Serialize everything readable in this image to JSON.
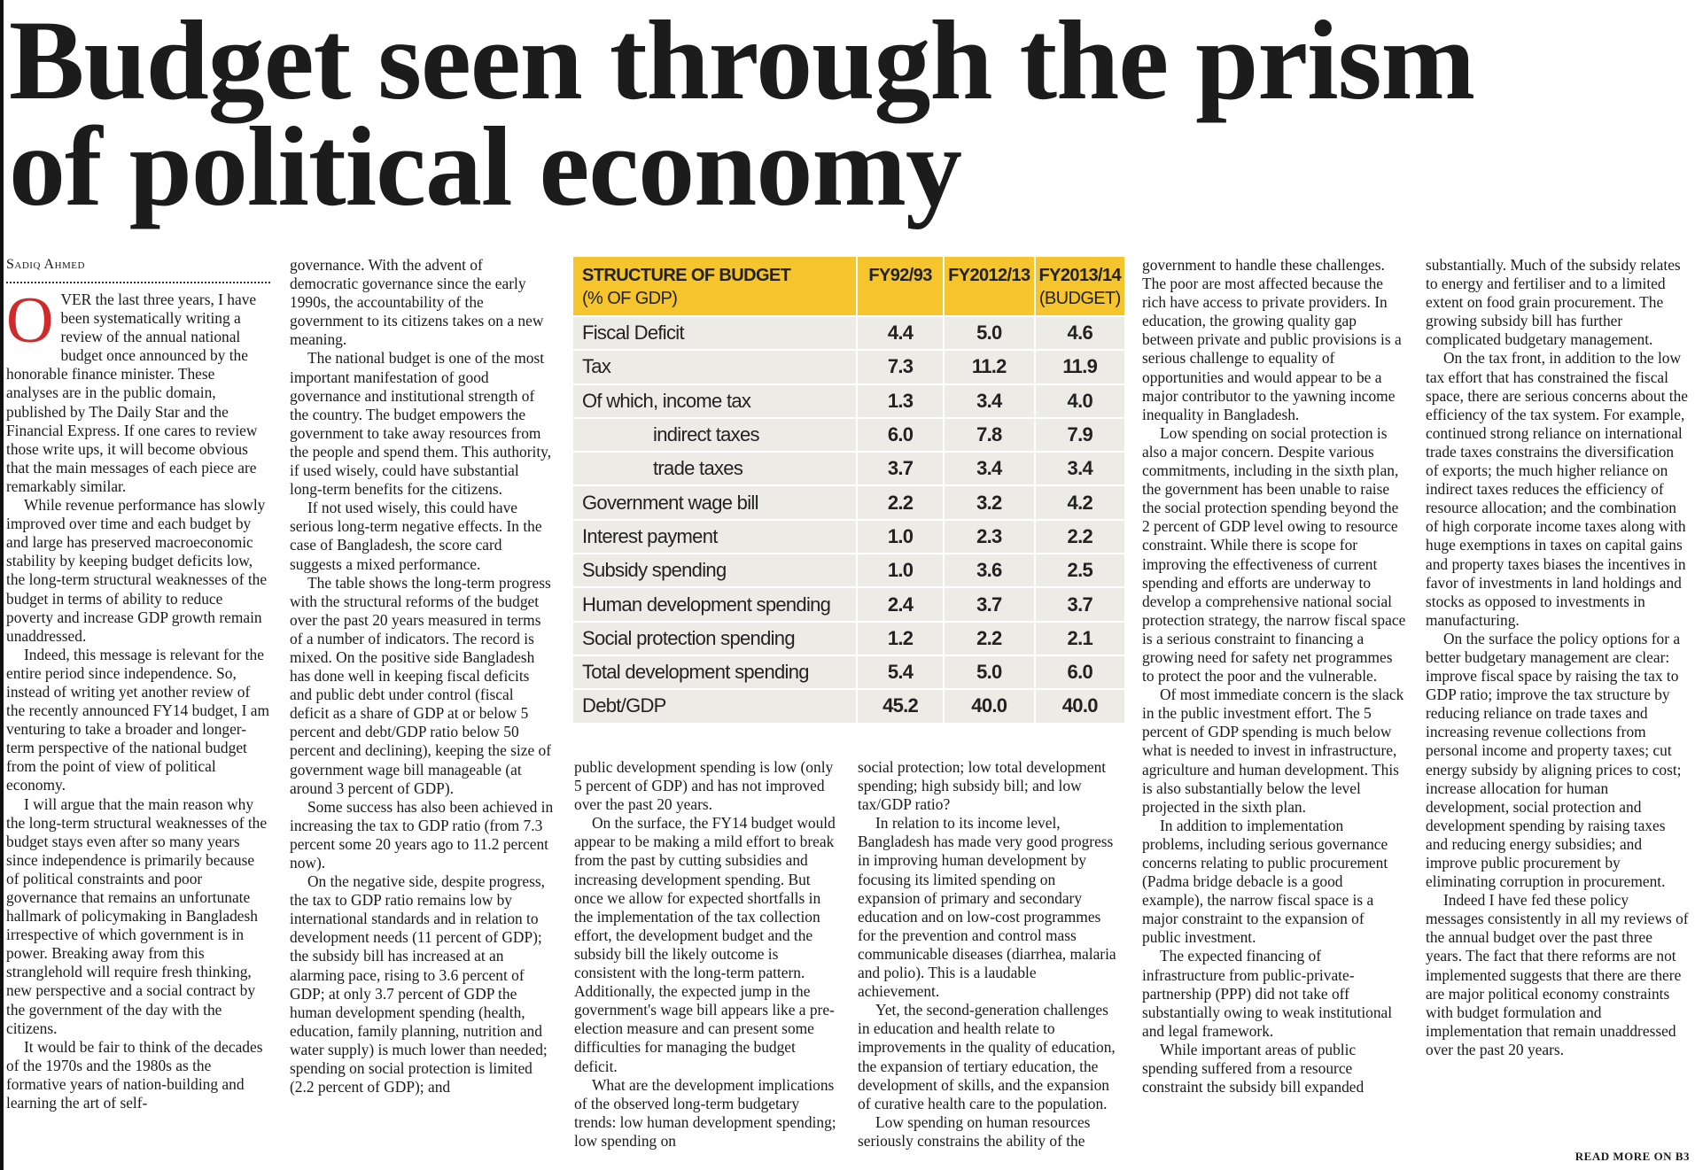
{
  "headline_lines": [
    "Budget seen through the prism",
    "of political economy"
  ],
  "byline": "Sadiq Ahmed",
  "columns": [
    {
      "paragraphs": [
        "OVER the last three years, I have been systematically writing a review of the annual national budget once announced by the honorable finance minister.  These analyses are in the public domain, published by The Daily Star and the Financial Express. If one cares to review those write ups, it will become obvious that the main messages of each piece are remarkably similar.",
        "While revenue performance has slowly improved over time and each budget by and large has preserved macroeconomic stability by keeping budget deficits low, the long-term structural weaknesses of the budget in terms of ability to reduce poverty and increase GDP growth remain unaddressed.",
        "Indeed, this message is relevant for the entire period since independence. So, instead of writing yet another review of the recently announced FY14 budget, I am venturing to take a broader and longer-term perspective of the national budget from the point of view of political economy.",
        "I will argue that the main reason why the long-term structural weaknesses of the budget stays even after so many years since independence is primarily because of political constraints and poor governance that remains an unfortunate hallmark of policymaking in Bangladesh irrespective of which government is in power. Breaking away from this stranglehold will require fresh thinking, new perspective and a social contract by the government of the day with the citizens.",
        "It would be fair to think of the decades of the 1970s and the 1980s as the formative years of nation-building and learning the art of self-"
      ]
    },
    {
      "paragraphs": [
        "governance. With the advent of democratic governance since the early 1990s, the accountability of the government to its citizens takes on a new meaning.",
        "The national budget is one of the most important manifestation of good governance and institutional strength of the country. The budget empowers the government to take away resources from the people and spend them.  This authority, if used wisely, could have substantial long-term benefits for the citizens.",
        "If not used wisely, this could have serious long-term negative effects. In the case of Bangladesh, the score card suggests a mixed performance.",
        "The table shows the long-term progress with the structural reforms of the budget over the past 20 years measured in terms of a number of indicators. The record is mixed. On the positive side Bangladesh has done well in keeping fiscal deficits and public debt under control (fiscal deficit as a share of GDP at or below 5 percent and debt/GDP ratio below 50 percent and declining), keeping the size of government wage bill manageable (at around 3 percent of GDP).",
        "Some success has also been achieved in increasing the tax to GDP ratio (from 7.3 percent some 20 years ago to 11.2 percent now).",
        "On the negative side, despite progress, the tax to GDP ratio remains low by international standards and in relation to development needs (11 percent of GDP); the subsidy bill has increased at an alarming pace, rising to 3.6 percent of GDP;  at only 3.7 percent of GDP the human development spending (health, education, family planning, nutrition and water supply) is much lower than needed; spending on social protection is limited (2.2 percent of GDP); and"
      ]
    },
    {
      "paragraphs": [
        "public development spending is low (only 5 percent of GDP) and has not improved over the past 20 years.",
        "On the surface, the FY14 budget would appear to be making a mild effort to break from the past by cutting subsidies and increasing development spending. But once we allow for expected shortfalls in the implementation of the tax collection effort, the development budget and the subsidy bill the likely outcome is consistent with the long-term pattern. Additionally, the expected jump in the government's wage bill appears like a pre-election measure and can present some difficulties for managing the budget deficit.",
        "What are the development implications of the observed long-term budgetary trends: low human development spending; low spending on"
      ]
    },
    {
      "paragraphs": [
        "social protection; low total development spending; high subsidy bill; and low tax/GDP ratio?",
        "In relation to its income level, Bangladesh has made very good progress in improving human development by focusing its limited spending on expansion of primary and secondary education and on low-cost programmes for the prevention and control mass communicable diseases (diarrhea, malaria and polio). This is a laudable achievement.",
        "Yet, the second-generation challenges in education and health relate to improvements in the quality of education, the expansion of tertiary education, the development of skills, and the expansion of curative health care to the population.",
        "Low spending on human resources seriously constrains the ability of the"
      ]
    },
    {
      "paragraphs": [
        "government to handle these challenges. The poor are most affected because the rich have access to private providers. In education, the growing quality gap between private and public provisions is a serious challenge to equality of opportunities and would appear to be a major contributor to the yawning income inequality in Bangladesh.",
        "Low spending on social protection is also a major concern. Despite various commitments, including in the sixth plan, the government has been unable to raise the social protection spending beyond the 2 percent of GDP level owing to resource constraint. While there is scope for improving the effectiveness of current spending and efforts are underway to develop a comprehensive national social protection strategy, the narrow fiscal space is a serious constraint to financing a growing need for safety net programmes to protect the poor and the vulnerable.",
        "Of most immediate concern is the slack in the public investment effort. The 5 percent of GDP spending is much below what is needed to invest in infrastructure, agriculture and human development. This is also substantially below the level projected in the sixth plan.",
        "In addition to implementation problems, including serious governance concerns relating to public procurement (Padma bridge debacle is a good example), the narrow fiscal space is a major constraint to the expansion of public investment.",
        "The expected financing of infrastructure from public-private-partnership (PPP) did not take off substantially owing to weak institutional and legal framework.",
        "While important areas of public spending suffered from a resource constraint the subsidy bill expanded"
      ]
    },
    {
      "paragraphs": [
        "substantially. Much of the subsidy relates to energy and fertiliser and to a limited extent on food grain procurement. The growing subsidy bill has further complicated budgetary management.",
        "On the tax front, in addition to the low tax effort that has constrained the fiscal space, there are serious concerns about the efficiency of the tax system. For example, continued strong reliance on international trade taxes constrains the diversification of exports; the much higher reliance on indirect taxes reduces the efficiency of resource allocation; and the combination of high corporate income taxes along with huge exemptions in taxes on capital gains and property taxes biases the incentives in favor of investments in land holdings and stocks as opposed to investments in manufacturing.",
        "On the surface the policy options for a better budgetary management are clear: improve fiscal space by raising the tax to GDP ratio; improve the tax structure by reducing reliance on trade taxes and increasing revenue collections from personal income and property taxes; cut energy subsidy by aligning prices to cost; increase allocation for human development, social protection and development spending by raising taxes and reducing energy subsidies; and improve public procurement by eliminating corruption in procurement.",
        "Indeed I have fed these policy messages consistently in all my reviews of the annual budget over the past three years.  The fact that there reforms are not implemented suggests that there are there are major political economy constraints with budget formulation and implementation that remain unaddressed over the past 20 years."
      ]
    }
  ],
  "read_more": "READ MORE ON B3",
  "table": {
    "title": "STRUCTURE OF BUDGET",
    "subtitle": "(% OF GDP)",
    "headers": [
      [
        "FY92/93"
      ],
      [
        "FY2012/13"
      ],
      [
        "FY2013/14",
        "(BUDGET)"
      ]
    ],
    "rows": [
      {
        "label": "Fiscal Deficit",
        "values": [
          "4.4",
          "5.0",
          "4.6"
        ]
      },
      {
        "label": "Tax",
        "values": [
          "7.3",
          "11.2",
          "11.9"
        ]
      },
      {
        "label": "Of which, income tax",
        "values": [
          "1.3",
          "3.4",
          "4.0"
        ]
      },
      {
        "label": "indirect taxes",
        "values": [
          "6.0",
          "7.8",
          "7.9"
        ]
      },
      {
        "label": "trade taxes",
        "values": [
          "3.7",
          "3.4",
          "3.4"
        ]
      },
      {
        "label": "Government wage bill",
        "values": [
          "2.2",
          "3.2",
          "4.2"
        ]
      },
      {
        "label": "Interest payment",
        "values": [
          "1.0",
          "2.3",
          "2.2"
        ]
      },
      {
        "label": "Subsidy spending",
        "values": [
          "1.0",
          "3.6",
          "2.5"
        ]
      },
      {
        "label": "Human development spending",
        "values": [
          "2.4",
          "3.7",
          "3.7"
        ]
      },
      {
        "label": "Social protection spending",
        "values": [
          "1.2",
          "2.2",
          "2.1"
        ]
      },
      {
        "label": "Total development spending",
        "values": [
          "5.4",
          "5.0",
          "6.0"
        ]
      },
      {
        "label": "Debt/GDP",
        "values": [
          "45.2",
          "40.0",
          "40.0"
        ]
      }
    ]
  }
}
